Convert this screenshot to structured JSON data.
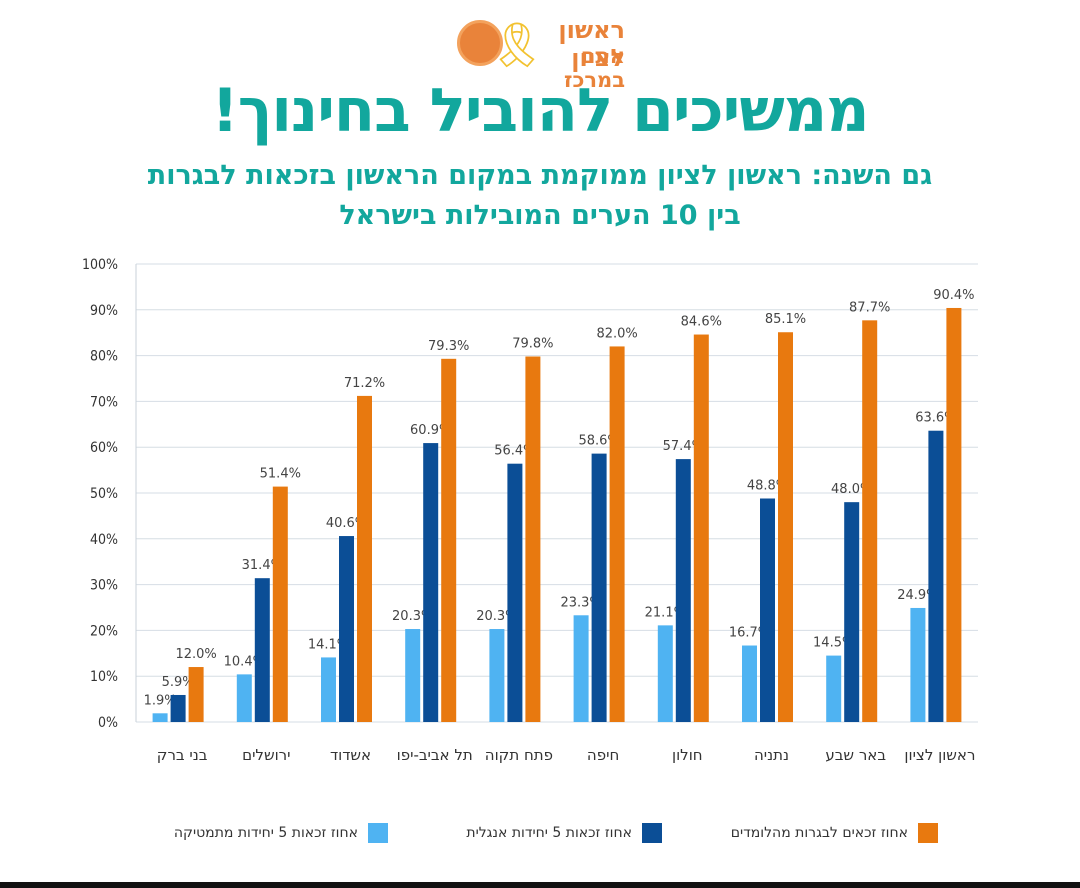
{
  "header": {
    "logo_line1": "ראשון לציון",
    "logo_line2": "אתם במרכז",
    "headline": "ממשיכים להוביל בחינוך!",
    "subtitle_line1": "גם השנה: ראשון לציון ממוקמת במקום הראשון בזכאות לבגרות",
    "subtitle_line2": "בין 10 הערים המובילות בישראל"
  },
  "colors": {
    "math": "#4fb3f2",
    "english": "#0b4e96",
    "bagrut": "#e8790f",
    "title": "#12a79d",
    "logo": "#e9833a"
  },
  "chart_data": {
    "type": "bar",
    "categories": [
      "בני ברק",
      "ירושלים",
      "אשדוד",
      "תל אביב-יפו",
      "פתח תקוה",
      "חיפה",
      "חולון",
      "נתניה",
      "באר שבע",
      "ראשון לציון"
    ],
    "series": [
      {
        "name": "אחוז זכאות 5 יחידות מתמטיקה",
        "values": [
          1.9,
          10.4,
          14.1,
          20.3,
          20.3,
          23.3,
          21.1,
          16.7,
          14.5,
          24.9
        ]
      },
      {
        "name": "אחוז זכאות 5 יחידות אנגלית",
        "values": [
          5.9,
          31.4,
          40.6,
          60.9,
          56.4,
          58.6,
          57.4,
          48.8,
          48.0,
          63.6
        ]
      },
      {
        "name": "אחוז זכאים לבגרות מהלומדים",
        "values": [
          12.0,
          51.4,
          71.2,
          79.3,
          79.8,
          82.0,
          84.6,
          85.1,
          87.7,
          90.4
        ]
      }
    ],
    "yticks": [
      "0%",
      "10%",
      "20%",
      "30%",
      "40%",
      "50%",
      "60%",
      "70%",
      "80%",
      "90%",
      "100%"
    ],
    "ylim": [
      0,
      100
    ],
    "grid": true,
    "legend_position": "bottom"
  }
}
